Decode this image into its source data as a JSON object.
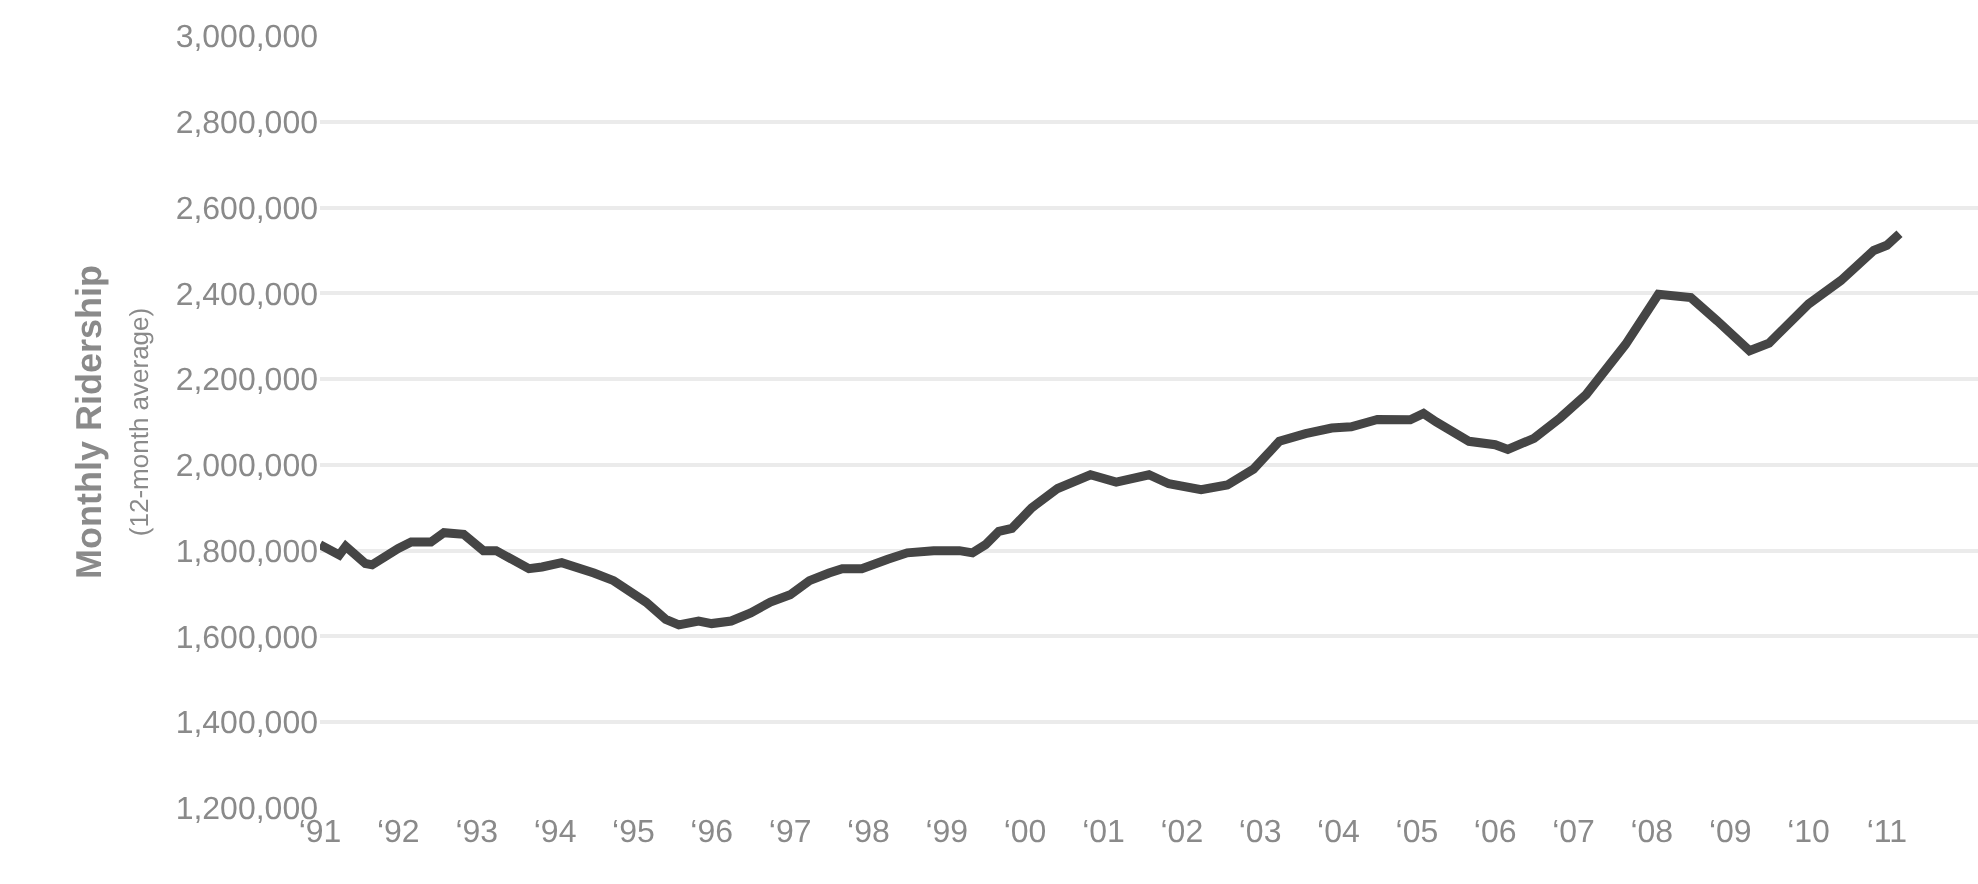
{
  "chart_data": {
    "type": "line",
    "ylabel": "Monthly Ridership\n(12-month average)",
    "x": [
      "1991-01",
      "1991-04",
      "1991-05",
      "1991-08",
      "1991-09",
      "1992-01",
      "1992-03",
      "1992-06",
      "1992-08",
      "1992-11",
      "1993-02",
      "1993-04",
      "1993-09",
      "1993-11",
      "1994-02",
      "1994-07",
      "1994-10",
      "1995-03",
      "1995-06",
      "1995-08",
      "1995-11",
      "1996-01",
      "1996-04",
      "1996-07",
      "1996-10",
      "1997-01",
      "1997-04",
      "1997-07",
      "1997-09",
      "1997-12",
      "1998-04",
      "1998-07",
      "1998-11",
      "1999-03",
      "1999-05",
      "1999-07",
      "1999-09",
      "1999-11",
      "2000-02",
      "2000-06",
      "2000-11",
      "2001-03",
      "2001-08",
      "2001-11",
      "2002-04",
      "2002-08",
      "2002-12",
      "2003-04",
      "2003-08",
      "2003-12",
      "2004-03",
      "2004-07",
      "2004-12",
      "2005-02",
      "2005-04",
      "2005-09",
      "2006-01",
      "2006-03",
      "2006-07",
      "2006-11",
      "2007-03",
      "2007-09",
      "2008-02",
      "2008-07",
      "2008-11",
      "2009-04",
      "2009-07",
      "2010-01",
      "2010-06",
      "2010-11",
      "2011-01",
      "2011-03"
    ],
    "series": [
      {
        "color": "#454545",
        "values": [
          1814000,
          1790000,
          1810000,
          1770000,
          1767000,
          1805000,
          1820000,
          1820000,
          1842000,
          1838000,
          1800000,
          1800000,
          1758000,
          1762000,
          1772000,
          1748000,
          1730000,
          1680000,
          1640000,
          1627000,
          1636000,
          1630000,
          1636000,
          1655000,
          1680000,
          1697000,
          1730000,
          1748000,
          1758000,
          1758000,
          1780000,
          1795000,
          1800000,
          1800000,
          1795000,
          1814000,
          1845000,
          1852000,
          1900000,
          1945000,
          1977000,
          1960000,
          1977000,
          1956000,
          1942000,
          1953000,
          1990000,
          2055000,
          2073000,
          2086000,
          2089000,
          2106000,
          2105000,
          2120000,
          2100000,
          2055000,
          2047000,
          2036000,
          2062000,
          2110000,
          2164000,
          2281000,
          2398000,
          2390000,
          2336000,
          2266000,
          2284000,
          2375000,
          2430000,
          2500000,
          2512000,
          2539000
        ]
      }
    ],
    "xlim": [
      "1991-01",
      "2012-03"
    ],
    "xticks": [
      {
        "value": "1991",
        "label": "‘91"
      },
      {
        "value": "1992",
        "label": "‘92"
      },
      {
        "value": "1993",
        "label": "‘93"
      },
      {
        "value": "1994",
        "label": "‘94"
      },
      {
        "value": "1995",
        "label": "‘95"
      },
      {
        "value": "1996",
        "label": "‘96"
      },
      {
        "value": "1997",
        "label": "‘97"
      },
      {
        "value": "1998",
        "label": "‘98"
      },
      {
        "value": "1999",
        "label": "‘99"
      },
      {
        "value": "2000",
        "label": "‘00"
      },
      {
        "value": "2001",
        "label": "‘01"
      },
      {
        "value": "2002",
        "label": "‘02"
      },
      {
        "value": "2003",
        "label": "‘03"
      },
      {
        "value": "2004",
        "label": "‘04"
      },
      {
        "value": "2005",
        "label": "‘05"
      },
      {
        "value": "2006",
        "label": "‘06"
      },
      {
        "value": "2007",
        "label": "‘07"
      },
      {
        "value": "2008",
        "label": "‘08"
      },
      {
        "value": "2009",
        "label": "‘09"
      },
      {
        "value": "2010",
        "label": "‘10"
      },
      {
        "value": "2011",
        "label": "‘11"
      }
    ],
    "ylim": [
      1200000,
      3000000
    ],
    "yticks": [
      {
        "value": 1200000,
        "label": "1,200,000"
      },
      {
        "value": 1400000,
        "label": "1,400,000"
      },
      {
        "value": 1600000,
        "label": "1,600,000"
      },
      {
        "value": 1800000,
        "label": "1,800,000"
      },
      {
        "value": 2000000,
        "label": "2,000,000"
      },
      {
        "value": 2200000,
        "label": "2,200,000"
      },
      {
        "value": 2400000,
        "label": "2,400,000"
      },
      {
        "value": 2600000,
        "label": "2,600,000"
      },
      {
        "value": 2800000,
        "label": "2,800,000"
      },
      {
        "value": 3000000,
        "label": "3,000,000"
      }
    ],
    "grid": "y",
    "legend": false,
    "marker": "none",
    "line_style": "solid"
  }
}
